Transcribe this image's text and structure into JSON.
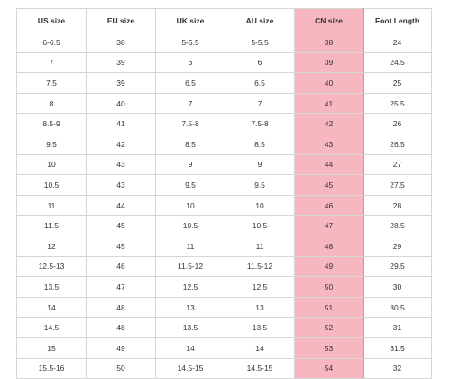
{
  "table": {
    "headers": [
      "US size",
      "EU size",
      "UK size",
      "AU size",
      "CN size",
      "Foot Length"
    ],
    "highlight_color": "#f7b7c0",
    "rows": [
      [
        "6-6.5",
        "38",
        "5-5.5",
        "5-5.5",
        "38",
        "24"
      ],
      [
        "7",
        "39",
        "6",
        "6",
        "39",
        "24.5"
      ],
      [
        "7.5",
        "39",
        "6.5",
        "6.5",
        "40",
        "25"
      ],
      [
        "8",
        "40",
        "7",
        "7",
        "41",
        "25.5"
      ],
      [
        "8.5-9",
        "41",
        "7.5-8",
        "7.5-8",
        "42",
        "26"
      ],
      [
        "9.5",
        "42",
        "8.5",
        "8.5",
        "43",
        "26.5"
      ],
      [
        "10",
        "43",
        "9",
        "9",
        "44",
        "27"
      ],
      [
        "10.5",
        "43",
        "9.5",
        "9.5",
        "45",
        "27.5"
      ],
      [
        "11",
        "44",
        "10",
        "10",
        "46",
        "28"
      ],
      [
        "11.5",
        "45",
        "10.5",
        "10.5",
        "47",
        "28.5"
      ],
      [
        "12",
        "45",
        "11",
        "11",
        "48",
        "29"
      ],
      [
        "12.5-13",
        "46",
        "11.5-12",
        "11.5-12",
        "49",
        "29.5"
      ],
      [
        "13.5",
        "47",
        "12.5",
        "12.5",
        "50",
        "30"
      ],
      [
        "14",
        "48",
        "13",
        "13",
        "51",
        "30.5"
      ],
      [
        "14.5",
        "48",
        "13.5",
        "13.5",
        "52",
        "31"
      ],
      [
        "15",
        "49",
        "14",
        "14",
        "53",
        "31.5"
      ],
      [
        "15.5-16",
        "50",
        "14.5-15",
        "14.5-15",
        "54",
        "32"
      ]
    ]
  }
}
